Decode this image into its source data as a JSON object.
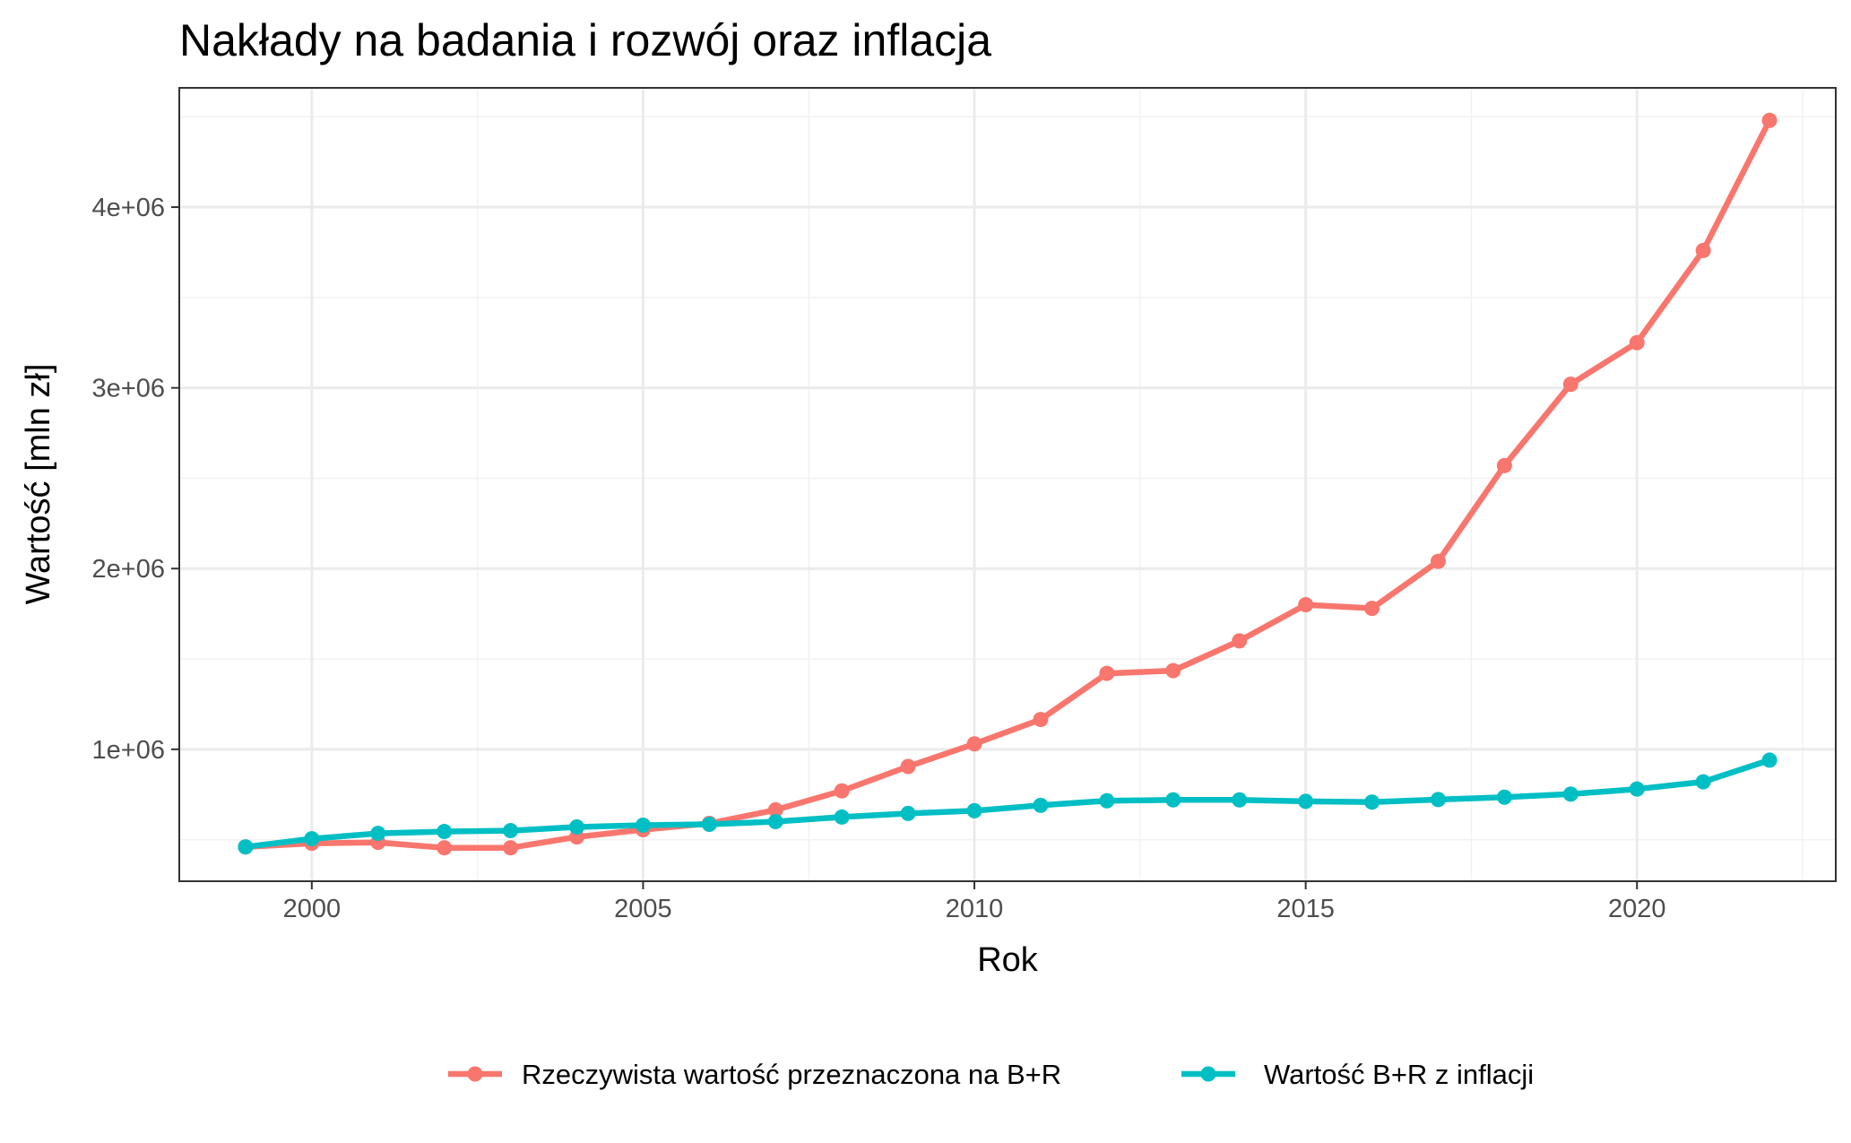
{
  "chart_data": {
    "type": "line",
    "title": "Nakłady na badania i rozwój oraz inflacja",
    "xlabel": "Rok",
    "ylabel": "Wartość [mln zł]",
    "xlim": [
      1998,
      2023
    ],
    "ylim": [
      270000,
      4660000
    ],
    "x_ticks": [
      2000,
      2005,
      2010,
      2015,
      2020
    ],
    "x_tick_labels": [
      "2000",
      "2005",
      "2010",
      "2015",
      "2020"
    ],
    "y_ticks": [
      1000000,
      2000000,
      3000000,
      4000000
    ],
    "y_tick_labels": [
      "1e+06",
      "2e+06",
      "3e+06",
      "4e+06"
    ],
    "grid": true,
    "legend_position": "bottom",
    "x": [
      1999,
      2000,
      2001,
      2002,
      2003,
      2004,
      2005,
      2006,
      2007,
      2008,
      2009,
      2010,
      2011,
      2012,
      2013,
      2014,
      2015,
      2016,
      2017,
      2018,
      2019,
      2020,
      2021,
      2022
    ],
    "series": [
      {
        "name": "Rzeczywista wartość przeznaczona na B+R",
        "color": "#F8766D",
        "values": [
          460000,
          480000,
          485000,
          455000,
          455000,
          515000,
          555000,
          590000,
          665000,
          770000,
          905000,
          1030000,
          1165000,
          1420000,
          1435000,
          1600000,
          1800000,
          1780000,
          2040000,
          2570000,
          3020000,
          3250000,
          3760000,
          4480000
        ]
      },
      {
        "name": "Wartość B+R z inflacji",
        "color": "#00BFC4",
        "values": [
          460000,
          505000,
          535000,
          545000,
          550000,
          570000,
          580000,
          585000,
          600000,
          625000,
          645000,
          660000,
          690000,
          715000,
          720000,
          720000,
          712000,
          708000,
          722000,
          735000,
          752000,
          780000,
          820000,
          940000
        ]
      }
    ]
  }
}
